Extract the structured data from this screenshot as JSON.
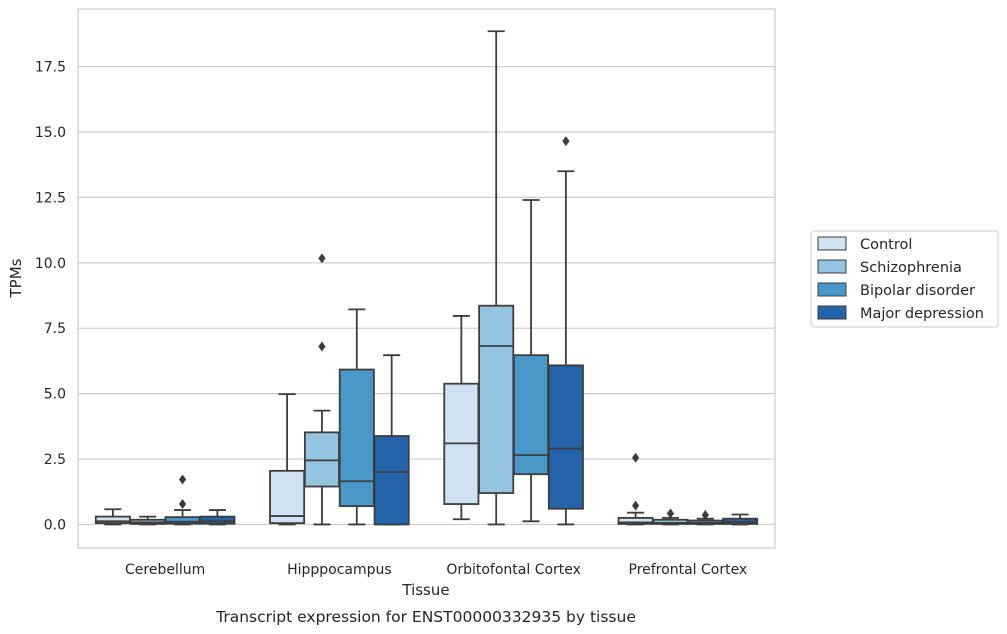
{
  "chart_data": {
    "type": "box",
    "title": "",
    "caption": "Transcript expression for ENST00000332935 by tissue",
    "xlabel": "Tissue",
    "ylabel": "TPMs",
    "ylim": [
      -0.9,
      19.7
    ],
    "yticks": [
      0.0,
      2.5,
      5.0,
      7.5,
      10.0,
      12.5,
      15.0,
      17.5
    ],
    "ytick_labels": [
      "0.0",
      "2.5",
      "5.0",
      "7.5",
      "10.0",
      "12.5",
      "15.0",
      "17.5"
    ],
    "grid": "horizontal",
    "legend_position": "outside-right",
    "categories": [
      "Cerebellum",
      "Hipppocampus",
      "Orbitofontal Cortex",
      "Prefrontal Cortex"
    ],
    "series": [
      {
        "name": "Control",
        "color": "#d0e1f2",
        "boxes": [
          {
            "whisker_low": 0.0,
            "q1": 0.05,
            "median": 0.12,
            "q3": 0.3,
            "whisker_high": 0.58,
            "outliers": []
          },
          {
            "whisker_low": 0.0,
            "q1": 0.05,
            "median": 0.32,
            "q3": 2.05,
            "whisker_high": 4.98,
            "outliers": []
          },
          {
            "whisker_low": 0.2,
            "q1": 0.78,
            "median": 3.1,
            "q3": 5.38,
            "whisker_high": 7.97,
            "outliers": []
          },
          {
            "whisker_low": 0.0,
            "q1": 0.02,
            "median": 0.08,
            "q3": 0.25,
            "whisker_high": 0.45,
            "outliers": [
              0.72,
              2.55
            ]
          }
        ]
      },
      {
        "name": "Schizophrenia",
        "color": "#94c4df",
        "boxes": [
          {
            "whisker_low": 0.0,
            "q1": 0.02,
            "median": 0.08,
            "q3": 0.18,
            "whisker_high": 0.3,
            "outliers": []
          },
          {
            "whisker_low": 0.0,
            "q1": 1.45,
            "median": 2.45,
            "q3": 3.52,
            "whisker_high": 4.35,
            "outliers": [
              6.8,
              10.17
            ]
          },
          {
            "whisker_low": 0.0,
            "q1": 1.2,
            "median": 6.82,
            "q3": 8.36,
            "whisker_high": 18.85,
            "outliers": []
          },
          {
            "whisker_low": 0.0,
            "q1": 0.02,
            "median": 0.06,
            "q3": 0.18,
            "whisker_high": 0.25,
            "outliers": [
              0.42
            ]
          }
        ]
      },
      {
        "name": "Bipolar disorder",
        "color": "#4a98c9",
        "boxes": [
          {
            "whisker_low": 0.0,
            "q1": 0.03,
            "median": 0.1,
            "q3": 0.28,
            "whisker_high": 0.55,
            "outliers": [
              0.78,
              1.72
            ]
          },
          {
            "whisker_low": 0.0,
            "q1": 0.7,
            "median": 1.65,
            "q3": 5.92,
            "whisker_high": 8.22,
            "outliers": []
          },
          {
            "whisker_low": 0.12,
            "q1": 1.92,
            "median": 2.65,
            "q3": 6.47,
            "whisker_high": 12.4,
            "outliers": []
          },
          {
            "whisker_low": 0.0,
            "q1": 0.02,
            "median": 0.06,
            "q3": 0.15,
            "whisker_high": 0.22,
            "outliers": [
              0.36
            ]
          }
        ]
      },
      {
        "name": "Major depression",
        "color": "#2464ab",
        "boxes": [
          {
            "whisker_low": 0.0,
            "q1": 0.03,
            "median": 0.12,
            "q3": 0.3,
            "whisker_high": 0.55,
            "outliers": []
          },
          {
            "whisker_low": 0.0,
            "q1": 0.0,
            "median": 2.0,
            "q3": 3.38,
            "whisker_high": 6.47,
            "outliers": []
          },
          {
            "whisker_low": 0.0,
            "q1": 0.6,
            "median": 2.9,
            "q3": 6.08,
            "whisker_high": 13.5,
            "outliers": [
              14.65
            ]
          },
          {
            "whisker_low": 0.0,
            "q1": 0.02,
            "median": 0.1,
            "q3": 0.22,
            "whisker_high": 0.38,
            "outliers": []
          }
        ]
      }
    ]
  }
}
